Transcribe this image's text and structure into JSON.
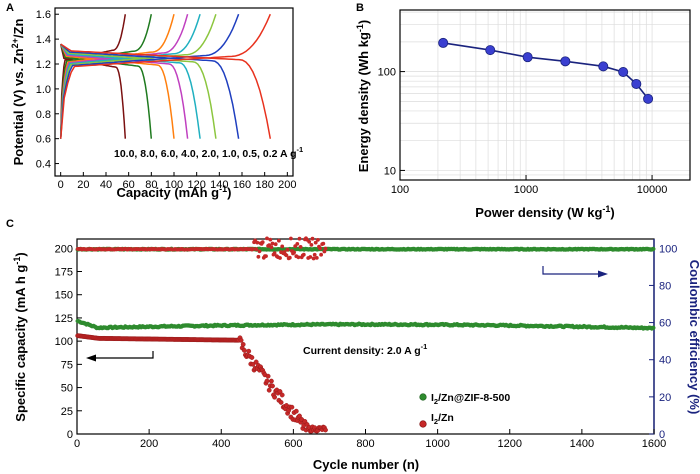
{
  "chart_data": [
    {
      "panel": "A",
      "type": "line",
      "xlabel": "Capacity (mAh g⁻¹)",
      "ylabel": "Potential (V) vs. Zn²⁺/Zn",
      "xlim": [
        -5,
        205
      ],
      "ylim": [
        0.3,
        1.65
      ],
      "xticks": [
        0,
        20,
        40,
        60,
        80,
        100,
        120,
        140,
        160,
        180,
        200
      ],
      "yticks": [
        0.4,
        0.6,
        0.8,
        1.0,
        1.2,
        1.4,
        1.6
      ],
      "annotation": "10.0, 8.0, 6.0, 4.0, 2.0, 1.0, 0.5, 0.2 A g⁻¹",
      "series": [
        {
          "name": "10.0 A g⁻¹",
          "color": "#7a1010",
          "capacity": 57
        },
        {
          "name": "8.0 A g⁻¹",
          "color": "#1f7a1f",
          "capacity": 80
        },
        {
          "name": "6.0 A g⁻¹",
          "color": "#ff7f0e",
          "capacity": 100
        },
        {
          "name": "4.0 A g⁻¹",
          "color": "#c040c0",
          "capacity": 112
        },
        {
          "name": "2.0 A g⁻¹",
          "color": "#20b0c0",
          "capacity": 123
        },
        {
          "name": "1.0 A g⁻¹",
          "color": "#8cc63f",
          "capacity": 137
        },
        {
          "name": "0.5 A g⁻¹",
          "color": "#1f3fbf",
          "capacity": 157
        },
        {
          "name": "0.2 A g⁻¹",
          "color": "#e8321e",
          "capacity": 185
        }
      ]
    },
    {
      "panel": "B",
      "type": "line",
      "xlabel": "Power density (W kg⁻¹)",
      "ylabel": "Energy density (Wh kg⁻¹)",
      "xscale": "log",
      "yscale": "log",
      "xlim": [
        100,
        20000
      ],
      "ylim": [
        8,
        420
      ],
      "xticks": [
        100,
        1000,
        10000
      ],
      "xtick_labels": [
        "100",
        "1000",
        "10000"
      ],
      "yticks": [
        10,
        100
      ],
      "ytick_labels": [
        "10",
        "100"
      ],
      "grid": true,
      "color": "#1a237e",
      "points": [
        {
          "x": 220,
          "y": 195
        },
        {
          "x": 520,
          "y": 165
        },
        {
          "x": 1030,
          "y": 140
        },
        {
          "x": 2050,
          "y": 127
        },
        {
          "x": 4100,
          "y": 113
        },
        {
          "x": 5900,
          "y": 99
        },
        {
          "x": 7500,
          "y": 75
        },
        {
          "x": 9300,
          "y": 53
        }
      ]
    },
    {
      "panel": "C",
      "type": "scatter",
      "xlabel": "Cycle number (n)",
      "ylabel": "Specific capacity (mA h g⁻¹)",
      "y2label": "Coulombic efficiency (%)",
      "xlim": [
        0,
        1600
      ],
      "ylim": [
        0,
        210
      ],
      "y2lim": [
        0,
        105
      ],
      "xticks": [
        0,
        200,
        400,
        600,
        800,
        1000,
        1200,
        1400,
        1600
      ],
      "yticks": [
        0,
        25,
        50,
        75,
        100,
        125,
        150,
        175,
        200
      ],
      "y2ticks": [
        0,
        20,
        40,
        60,
        80,
        100
      ],
      "annotation": "Current density: 2.0 A g⁻¹",
      "series": [
        {
          "name": "I₂/Zn@ZIF-8-500",
          "color": "#2e8b2e",
          "capacity_initial": 122,
          "capacity_stable": 117,
          "cycles": 1600,
          "ce": 99.5
        },
        {
          "name": "I₂/Zn",
          "color": "#c62828",
          "capacity_initial": 106,
          "capacity_at_450": 101,
          "failure_cycle": 690,
          "ce": 99.5
        }
      ]
    }
  ],
  "panels": {
    "a": {
      "letter": "A",
      "ylabel_main": "Potential (V) vs. Zn",
      "ylabel_sup": "2+",
      "ylabel_tail": "/Zn",
      "xlabel_main": "Capacity (mAh g",
      "xlabel_sup": "-1",
      "xlabel_tail": ")",
      "note_main": "10.0, 8.0, 6.0, 4.0, 2.0, 1.0, 0.5, 0.2 A g",
      "note_sup": "-1"
    },
    "b": {
      "letter": "B",
      "ylabel_main": "Energy density (Wh kg",
      "ylabel_sup": "-1",
      "ylabel_tail": ")",
      "xlabel_main": "Power density (W kg",
      "xlabel_sup": "-1",
      "xlabel_tail": ")"
    },
    "c": {
      "letter": "C",
      "ylabel_main": "Specific capacity (mA h g",
      "ylabel_sup": "-1",
      "ylabel_tail": ")",
      "y2label": "Coulombic efficiency (%)",
      "xlabel": "Cycle number (n)",
      "note_main": "Current density: 2.0 A g",
      "note_sup": "-1",
      "legend1_pre": "I",
      "legend1_sub": "2",
      "legend1_post": "/Zn@ZIF-8-500",
      "legend2_pre": "I",
      "legend2_sub": "2",
      "legend2_post": "/Zn"
    }
  },
  "colors": {
    "axis": "#000000",
    "ce_axis": "#1a237e"
  }
}
